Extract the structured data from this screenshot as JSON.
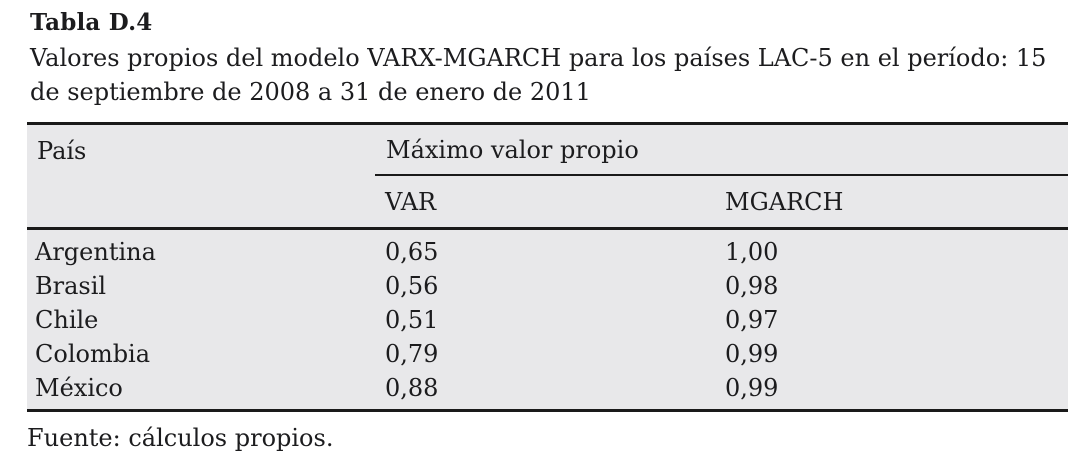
{
  "title": "Tabla D.4",
  "caption": "Valores propios del modelo VARX-MGARCH para los países LAC-5 en el período: 15 de septiembre de 2008 a 31 de enero de 2011",
  "table": {
    "col_pais": "País",
    "col_group": "Máximo valor propio",
    "col_var": "VAR",
    "col_mgarch": "MGARCH",
    "rows": [
      {
        "pais": "Argentina",
        "var": "0,65",
        "mgarch": "1,00"
      },
      {
        "pais": "Brasil",
        "var": "0,56",
        "mgarch": "0,98"
      },
      {
        "pais": "Chile",
        "var": "0,51",
        "mgarch": "0,97"
      },
      {
        "pais": "Colombia",
        "var": "0,79",
        "mgarch": "0,99"
      },
      {
        "pais": "México",
        "var": "0,88",
        "mgarch": "0,99"
      }
    ]
  },
  "source": "Fuente: cálculos propios.",
  "colors": {
    "table_background": "#e8e8ea",
    "text": "#1c1c1e",
    "rule": "#1a1a1a",
    "page_background": "#ffffff"
  },
  "chart_data": {
    "type": "table",
    "title": "Valores propios del modelo VARX-MGARCH para los países LAC-5 en el período: 15 de septiembre de 2008 a 31 de enero de 2011",
    "categories": [
      "Argentina",
      "Brasil",
      "Chile",
      "Colombia",
      "México"
    ],
    "series": [
      {
        "name": "VAR",
        "values": [
          0.65,
          0.56,
          0.51,
          0.79,
          0.88
        ]
      },
      {
        "name": "MGARCH",
        "values": [
          1.0,
          0.98,
          0.97,
          0.99,
          0.99
        ]
      }
    ]
  }
}
